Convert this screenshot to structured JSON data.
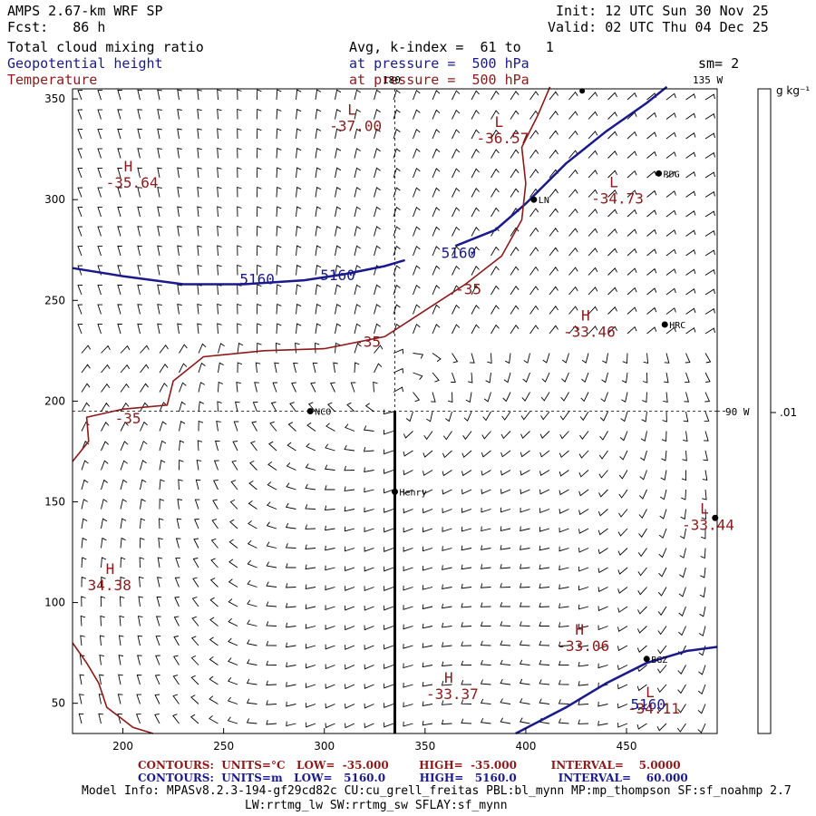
{
  "header": {
    "model": "AMPS 2.67-km WRF SP",
    "fcst": "Fcst:   86 h",
    "init": "Init: 12 UTC Sun 30 Nov 25",
    "valid": "Valid: 02 UTC Thu 04 Dec 25",
    "field1": "Total cloud mixing ratio",
    "field2": "Geopotential height",
    "field3": "Temperature",
    "avg": "Avg, k-index =  61 to   1",
    "pressure1": "at pressure =  500 hPa",
    "pressure2": "at pressure =  500 hPa",
    "sm": "sm= 2",
    "lon135": "135 W",
    "lon180": "180",
    "lon90": "90 W"
  },
  "colorbar": {
    "unit": "g kg⁻¹",
    "tick": ".01"
  },
  "colors": {
    "height": "#1a1a8c",
    "temperature": "#8b1a1a",
    "barb": "#000000",
    "grid": "#000000"
  },
  "axes": {
    "x_ticks": [
      "200",
      "250",
      "300",
      "350",
      "400",
      "450"
    ],
    "y_ticks": [
      "350",
      "300",
      "250",
      "200",
      "150",
      "100",
      "50"
    ],
    "x_range": [
      175,
      495
    ],
    "y_range": [
      35,
      355
    ]
  },
  "stations": [
    {
      "name": "NCO",
      "x": 293,
      "y": 195
    },
    {
      "name": "Henry",
      "x": 335,
      "y": 155
    },
    {
      "name": "RDG",
      "x": 466,
      "y": 313
    },
    {
      "name": "HRC",
      "x": 469,
      "y": 238
    },
    {
      "name": "LN",
      "x": 404,
      "y": 300
    },
    {
      "name": "BGZ",
      "x": 460,
      "y": 72
    }
  ],
  "extrema": [
    {
      "type": "L",
      "value": "-37.00",
      "x": 307,
      "y": 334
    },
    {
      "type": "L",
      "value": "-36.57",
      "x": 380,
      "y": 328
    },
    {
      "type": "H",
      "value": "-35.64",
      "x": 196,
      "y": 306
    },
    {
      "type": "L",
      "value": "-34.73",
      "x": 437,
      "y": 298
    },
    {
      "type": "H",
      "value": "-33.46",
      "x": 423,
      "y": 232
    },
    {
      "type": "H",
      "value": "34.38",
      "x": 187,
      "y": 106
    },
    {
      "type": "L",
      "value": "-33.44",
      "x": 482,
      "y": 136
    },
    {
      "type": "H",
      "value": "-33.06",
      "x": 420,
      "y": 76
    },
    {
      "type": "H",
      "value": "-33.37",
      "x": 355,
      "y": 52
    },
    {
      "type": "L",
      "value": "-34.11",
      "x": 455,
      "y": 45
    }
  ],
  "contour_labels": {
    "height": [
      "5160",
      "5160",
      "5160",
      "5160"
    ],
    "temp": [
      "-35",
      "-35",
      "-35"
    ]
  },
  "footer": {
    "line1": "CONTOURS:  UNITS=°C   LOW=  -35.000        HIGH=  -35.000         INTERVAL=    5.0000",
    "line2": "CONTOURS:  UNITS=m   LOW=   5160.0         HIGH=   5160.0           INTERVAL=    60.000",
    "model_info": "Model Info: MPASv8.2.3-194-gf29cd82c CU:cu_grell_freitas PBL:bl_mynn MP:mp_thompson SF:sf_noahmp 2.7",
    "model_info2": "LW:rrtmg_lw SW:rrtmg_sw SFLAY:sf_mynn"
  }
}
